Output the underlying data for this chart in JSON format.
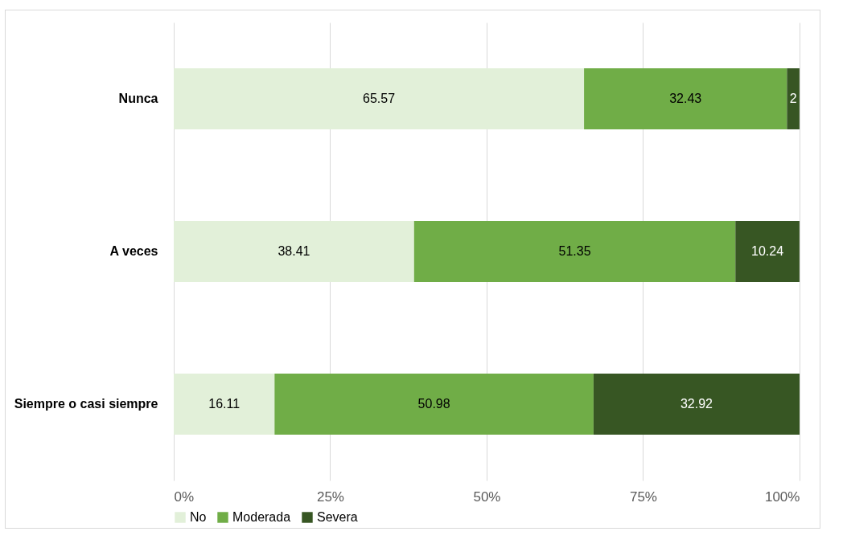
{
  "chart_data": {
    "type": "bar",
    "orientation": "horizontal",
    "stacked": true,
    "categories": [
      "Nunca",
      "A veces",
      "Siempre o casi siempre"
    ],
    "series": [
      {
        "name": "No",
        "color": "#e2f0d9",
        "values": [
          65.57,
          38.41,
          16.11
        ]
      },
      {
        "name": "Moderada",
        "color": "#70ad47",
        "values": [
          32.43,
          51.35,
          50.98
        ]
      },
      {
        "name": "Severa",
        "color": "#375623",
        "values": [
          2,
          10.24,
          32.92
        ]
      }
    ],
    "xlim": [
      0,
      100.01
    ],
    "xticks": [
      {
        "value": 0,
        "label": "0%"
      },
      {
        "value": 25,
        "label": "25%"
      },
      {
        "value": 50,
        "label": "50%"
      },
      {
        "value": 75,
        "label": "75%"
      },
      {
        "value": 100,
        "label": "100%"
      }
    ],
    "grid": "x",
    "legend": "bottom",
    "data_labels": true
  }
}
